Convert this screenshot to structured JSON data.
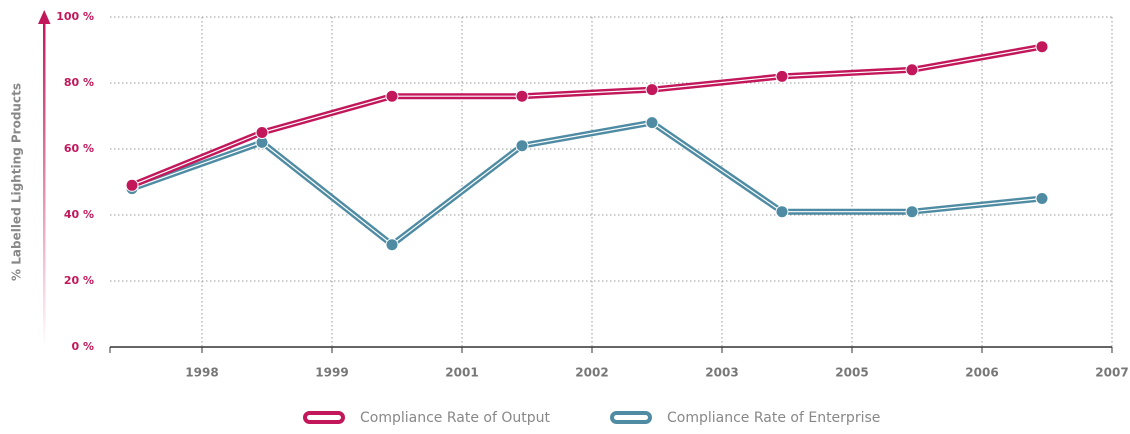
{
  "chart_data": {
    "type": "line",
    "y_label": "% Labelled Lighting Products",
    "categories": [
      null,
      null,
      null,
      null,
      null,
      null,
      null,
      null
    ],
    "xtick_labels": [
      "1998",
      "1999",
      "2001",
      "2002",
      "2003",
      "2005",
      "2006",
      "2007"
    ],
    "series": [
      {
        "name": "Compliance Rate of Output",
        "color": "#c2185b",
        "values": [
          49,
          65,
          76,
          76,
          78,
          82,
          84,
          91
        ]
      },
      {
        "name": "Compliance Rate of Enterprise",
        "color": "#4f8ca4",
        "values": [
          48,
          62,
          31,
          61,
          68,
          41,
          41,
          45
        ]
      }
    ],
    "ylim": [
      0,
      100
    ],
    "yticks": [
      {
        "value": 0,
        "label": "0 %"
      },
      {
        "value": 20,
        "label": "20 %"
      },
      {
        "value": 40,
        "label": "40 %"
      },
      {
        "value": 60,
        "label": "60 %"
      },
      {
        "value": 80,
        "label": "80 %"
      },
      {
        "value": 100,
        "label": "100 %"
      }
    ],
    "grid": true,
    "legend": "bottom"
  }
}
